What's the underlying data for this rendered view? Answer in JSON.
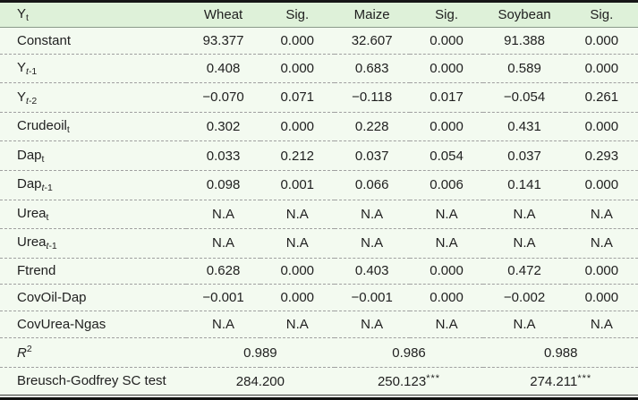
{
  "header": {
    "label_base": "Y",
    "label_sub": "t",
    "cols": [
      "Wheat",
      "Sig.",
      "Maize",
      "Sig.",
      "Soybean",
      "Sig."
    ]
  },
  "rows": [
    {
      "label": {
        "base": "Constant"
      },
      "values": [
        "93.377",
        "0.000",
        "32.607",
        "0.000",
        "91.388",
        "0.000"
      ]
    },
    {
      "label": {
        "base": "Y",
        "sub_italic": "t",
        "sub": "-1"
      },
      "values": [
        "0.408",
        "0.000",
        "0.683",
        "0.000",
        "0.589",
        "0.000"
      ]
    },
    {
      "label": {
        "base": "Y",
        "sub_italic": "t",
        "sub": "-2"
      },
      "values": [
        "−0.070",
        "0.071",
        "−0.118",
        "0.017",
        "−0.054",
        "0.261"
      ]
    },
    {
      "label": {
        "base": "Crudeoil",
        "sub": "t"
      },
      "values": [
        "0.302",
        "0.000",
        "0.228",
        "0.000",
        "0.431",
        "0.000"
      ]
    },
    {
      "label": {
        "base": "Dap",
        "sub": "t"
      },
      "values": [
        "0.033",
        "0.212",
        "0.037",
        "0.054",
        "0.037",
        "0.293"
      ]
    },
    {
      "label": {
        "base": "Dap",
        "sub_italic": "t",
        "sub": "-1"
      },
      "values": [
        "0.098",
        "0.001",
        "0.066",
        "0.006",
        "0.141",
        "0.000"
      ]
    },
    {
      "label": {
        "base": "Urea",
        "sub": "t"
      },
      "values": [
        "N.A",
        "N.A",
        "N.A",
        "N.A",
        "N.A",
        "N.A"
      ]
    },
    {
      "label": {
        "base": "Urea",
        "sub_italic": "t",
        "sub": "-1"
      },
      "values": [
        "N.A",
        "N.A",
        "N.A",
        "N.A",
        "N.A",
        "N.A"
      ]
    },
    {
      "label": {
        "base": "Ftrend"
      },
      "values": [
        "0.628",
        "0.000",
        "0.403",
        "0.000",
        "0.472",
        "0.000"
      ]
    },
    {
      "label": {
        "base": "CovOil-Dap"
      },
      "values": [
        "−0.001",
        "0.000",
        "−0.001",
        "0.000",
        "−0.002",
        "0.000"
      ]
    },
    {
      "label": {
        "base": "CovUrea-Ngas"
      },
      "values": [
        "N.A",
        "N.A",
        "N.A",
        "N.A",
        "N.A",
        "N.A"
      ]
    }
  ],
  "footer_rows": [
    {
      "label": {
        "base": "R",
        "base_italic": true,
        "sup": "2"
      },
      "values": [
        {
          "num": "0.989",
          "stars": ""
        },
        {
          "num": "0.986",
          "stars": ""
        },
        {
          "num": "0.988",
          "stars": ""
        }
      ]
    },
    {
      "label": {
        "base": "Breusch-Godfrey SC test"
      },
      "values": [
        {
          "num": "284.200",
          "stars": ""
        },
        {
          "num": "250.123",
          "stars": "***"
        },
        {
          "num": "274.211",
          "stars": "***"
        }
      ]
    }
  ],
  "colors": {
    "header_bg": "#def1d9",
    "body_bg": "#f3faf0",
    "top_rule": "#161616",
    "bottom_rule": "#111111",
    "thin_bottom_rule": "#3a3a3a",
    "header_rule": "#8a9a8a",
    "row_divider": "#a0a0a0",
    "text": "#1f1f1f"
  }
}
